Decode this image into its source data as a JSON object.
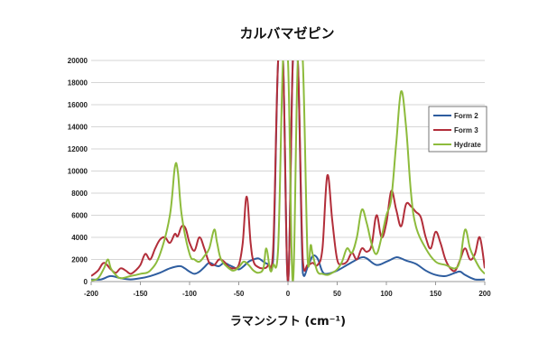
{
  "chart_data": {
    "type": "line",
    "title": "カルバマゼピン",
    "xlabel": "ラマンシフト (cm⁻¹)",
    "ylabel": "",
    "xlim": [
      -200,
      200
    ],
    "ylim": [
      0,
      20000
    ],
    "xticks": [
      "-200",
      "-150",
      "-100",
      "-50",
      "0",
      "50",
      "100",
      "150",
      "200"
    ],
    "yticks": [
      "0",
      "2000",
      "4000",
      "6000",
      "8000",
      "10000",
      "12000",
      "14000",
      "16000",
      "18000",
      "20000"
    ],
    "grid": true,
    "legend_position": "right",
    "series": [
      {
        "name": "Form 2",
        "color": "#2e5d9f",
        "x": [
          -200,
          -190,
          -180,
          -170,
          -160,
          -150,
          -140,
          -130,
          -120,
          -110,
          -105,
          -100,
          -95,
          -90,
          -85,
          -80,
          -75,
          -70,
          -65,
          -60,
          -55,
          -50,
          -45,
          -40,
          -35,
          -30,
          -25,
          -20,
          -15,
          -10,
          -5,
          0,
          5,
          10,
          15,
          20,
          25,
          30,
          35,
          40,
          50,
          60,
          70,
          75,
          80,
          90,
          100,
          105,
          110,
          115,
          120,
          130,
          140,
          150,
          160,
          170,
          175,
          180,
          190,
          200
        ],
        "y": [
          200,
          200,
          500,
          300,
          200,
          300,
          500,
          800,
          1200,
          1400,
          1200,
          900,
          700,
          900,
          1300,
          1700,
          1500,
          1400,
          1700,
          1500,
          1300,
          1100,
          1400,
          1800,
          2000,
          2100,
          1800,
          1600,
          2000,
          20000,
          20000,
          0,
          20000,
          20000,
          800,
          1300,
          2300,
          2100,
          900,
          700,
          1000,
          1500,
          2000,
          2200,
          2100,
          1500,
          1800,
          2000,
          2200,
          2100,
          1900,
          1600,
          1000,
          600,
          500,
          800,
          900,
          600,
          200,
          200
        ]
      },
      {
        "name": "Form 3",
        "color": "#b22e3a",
        "x": [
          -200,
          -193,
          -187,
          -180,
          -175,
          -170,
          -165,
          -160,
          -155,
          -150,
          -145,
          -140,
          -135,
          -130,
          -125,
          -120,
          -115,
          -112,
          -108,
          -104,
          -100,
          -95,
          -90,
          -85,
          -80,
          -75,
          -70,
          -65,
          -60,
          -55,
          -50,
          -46,
          -42,
          -38,
          -35,
          -30,
          -25,
          -20,
          -15,
          -10,
          -5,
          0,
          5,
          10,
          15,
          20,
          25,
          30,
          35,
          40,
          45,
          50,
          55,
          60,
          65,
          70,
          75,
          80,
          85,
          90,
          95,
          100,
          105,
          110,
          115,
          120,
          125,
          130,
          135,
          140,
          145,
          150,
          155,
          160,
          165,
          170,
          175,
          180,
          185,
          190,
          195,
          200
        ],
        "y": [
          500,
          1000,
          1700,
          1100,
          800,
          1200,
          1000,
          700,
          1000,
          1500,
          2500,
          2000,
          3000,
          3800,
          4000,
          3500,
          4300,
          4100,
          5000,
          4800,
          3500,
          2800,
          4000,
          3000,
          1700,
          1500,
          2000,
          1800,
          1300,
          1200,
          1500,
          3500,
          7700,
          3500,
          1800,
          1300,
          1200,
          1500,
          3000,
          20000,
          20000,
          0,
          20000,
          20000,
          2000,
          1500,
          1700,
          1500,
          3000,
          9600,
          5500,
          2000,
          1600,
          1800,
          2600,
          2000,
          3000,
          2700,
          3300,
          6000,
          4000,
          5300,
          8200,
          6500,
          5000,
          7000,
          6800,
          6300,
          5800,
          4000,
          3000,
          4500,
          3500,
          2000,
          1200,
          1000,
          2000,
          3000,
          2000,
          2500,
          4000,
          1200
        ],
        "note": ""
      },
      {
        "name": "Hydrate",
        "color": "#8dbb3c",
        "x": [
          -200,
          -193,
          -187,
          -183,
          -180,
          -175,
          -170,
          -160,
          -150,
          -140,
          -130,
          -120,
          -115,
          -112,
          -108,
          -100,
          -95,
          -90,
          -85,
          -80,
          -75,
          -72,
          -68,
          -60,
          -55,
          -50,
          -45,
          -40,
          -35,
          -30,
          -25,
          -22,
          -18,
          -15,
          -10,
          -5,
          0,
          5,
          10,
          15,
          20,
          23,
          25,
          30,
          35,
          40,
          45,
          50,
          55,
          60,
          65,
          70,
          75,
          80,
          85,
          90,
          95,
          100,
          105,
          110,
          115,
          120,
          125,
          130,
          140,
          150,
          160,
          170,
          175,
          180,
          185,
          190,
          195,
          200
        ],
        "y": [
          100,
          300,
          1200,
          2000,
          1200,
          600,
          300,
          500,
          700,
          1000,
          2500,
          6000,
          10300,
          10000,
          6000,
          2500,
          2000,
          1800,
          2300,
          3000,
          4700,
          3500,
          2000,
          1200,
          1000,
          1300,
          1800,
          1500,
          1000,
          800,
          1200,
          3000,
          1000,
          1500,
          3000,
          20000,
          20000,
          0,
          20000,
          20000,
          2000,
          3300,
          2500,
          900,
          700,
          600,
          800,
          1100,
          1800,
          3000,
          2600,
          4000,
          6500,
          5300,
          3400,
          2500,
          4000,
          6000,
          7500,
          12500,
          17200,
          14000,
          8000,
          5000,
          3000,
          1800,
          1500,
          1200,
          2000,
          4700,
          3000,
          2000,
          1200,
          700
        ]
      }
    ]
  }
}
